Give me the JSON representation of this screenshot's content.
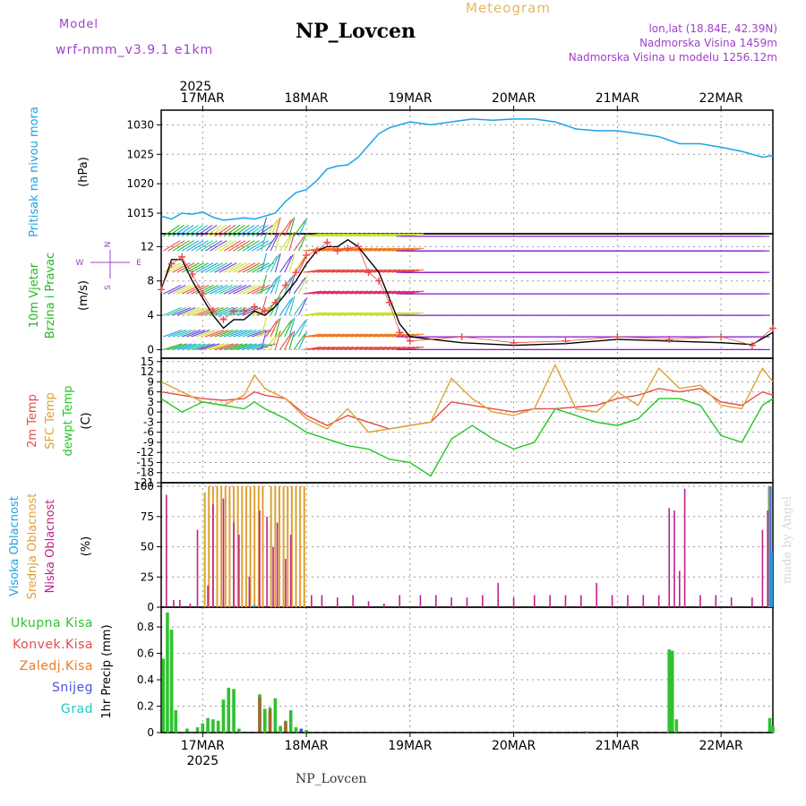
{
  "header": {
    "model_label": "Model",
    "model_name": "wrf-nmm_v3.9.1  e1km",
    "station": "NP_Lovcen",
    "meteogram": "Meteogram",
    "coords": "lon,lat (18.84E, 42.39N)",
    "elevation": "Nadmorska Visina 1459m",
    "model_elevation": "Nadmorska Visina u modelu 1256.12m"
  },
  "footer": {
    "station": "NP_Lovcen",
    "credit": "made by Angel"
  },
  "colors": {
    "pressure": "#1aa3e8",
    "wind_legend": "#22b822",
    "purple": "#a040c8",
    "temp2m": "#e84a4a",
    "sfc": "#e0a030",
    "dew": "#22c822",
    "high_cloud": "#1aa3e8",
    "mid_cloud": "#e0a030",
    "low_cloud": "#c0208a",
    "precip_total": "#2ec22e",
    "precip_conv": "#e84a4a",
    "precip_frz": "#f07a20",
    "snow": "#5050e0",
    "hail": "#20c8c8"
  },
  "time_axis": {
    "year_label": "2025",
    "days": [
      "17MAR",
      "18MAR",
      "19MAR",
      "20MAR",
      "21MAR",
      "22MAR"
    ],
    "start_day": 16.6,
    "end_day": 22.5
  },
  "chart_data": [
    {
      "type": "line",
      "id": "pressure",
      "ylabel_left": "Pritisak na nivou mora",
      "unit": "(hPa)",
      "ylim": [
        1011.5,
        1032.5
      ],
      "yticks": [
        1015,
        1020,
        1025,
        1030
      ],
      "grid": true,
      "series": [
        {
          "color": "#1aa3e8",
          "x": [
            16.6,
            16.7,
            16.8,
            16.9,
            17.0,
            17.1,
            17.2,
            17.3,
            17.4,
            17.5,
            17.6,
            17.7,
            17.8,
            17.9,
            18.0,
            18.1,
            18.2,
            18.3,
            18.4,
            18.5,
            18.6,
            18.7,
            18.8,
            18.9,
            19.0,
            19.2,
            19.4,
            19.6,
            19.8,
            20.0,
            20.2,
            20.4,
            20.6,
            20.8,
            21.0,
            21.2,
            21.4,
            21.6,
            21.8,
            22.0,
            22.2,
            22.4,
            22.5
          ],
          "y": [
            1014.5,
            1014.0,
            1015.0,
            1014.8,
            1015.2,
            1014.3,
            1013.8,
            1014.0,
            1014.2,
            1014.0,
            1014.5,
            1015.0,
            1017.0,
            1018.5,
            1019.0,
            1020.5,
            1022.5,
            1023.0,
            1023.2,
            1024.5,
            1026.5,
            1028.5,
            1029.5,
            1030.0,
            1030.5,
            1030.0,
            1030.5,
            1031.0,
            1030.8,
            1031.0,
            1031.0,
            1030.5,
            1029.3,
            1029.0,
            1029.0,
            1028.5,
            1028.0,
            1026.8,
            1026.8,
            1026.2,
            1025.5,
            1024.5,
            1024.8
          ]
        }
      ]
    },
    {
      "type": "line",
      "id": "wind",
      "ylabel_left": [
        "10m Vjetar",
        "Brzina i Pravac"
      ],
      "unit": "(m/s)",
      "compass": [
        "N",
        "W",
        "E",
        "S"
      ],
      "ylim": [
        -1,
        13.5
      ],
      "yticks": [
        0,
        4,
        8,
        12
      ],
      "grid": true,
      "barb_levels": [
        0,
        1.5,
        4,
        6.5,
        9,
        11.5,
        13.2
      ],
      "series": [
        {
          "name": "speed",
          "color": "#000000",
          "x": [
            16.6,
            16.7,
            16.8,
            16.9,
            17.0,
            17.1,
            17.2,
            17.3,
            17.4,
            17.5,
            17.6,
            17.7,
            17.8,
            17.9,
            18.0,
            18.1,
            18.2,
            18.3,
            18.4,
            18.5,
            18.6,
            18.7,
            18.8,
            18.9,
            19.0,
            19.5,
            20.0,
            20.5,
            21.0,
            21.5,
            22.0,
            22.3,
            22.5
          ],
          "y": [
            7.0,
            10.5,
            10.5,
            8.0,
            6.0,
            4.0,
            2.5,
            3.5,
            3.5,
            4.5,
            4.0,
            5.0,
            6.5,
            8.0,
            10.0,
            11.5,
            12.0,
            12.0,
            12.8,
            12.0,
            10.5,
            9.0,
            6.0,
            3.0,
            1.5,
            0.8,
            0.5,
            0.7,
            1.2,
            1.0,
            0.8,
            0.6,
            2.0
          ]
        },
        {
          "name": "gust",
          "color": "#e84a4a",
          "x": [
            16.6,
            16.7,
            16.8,
            16.9,
            17.0,
            17.1,
            17.2,
            17.3,
            17.4,
            17.5,
            17.6,
            17.7,
            17.8,
            17.9,
            18.0,
            18.1,
            18.2,
            18.3,
            18.4,
            18.5,
            18.6,
            18.7,
            18.8,
            18.9,
            19.0,
            19.5,
            20.0,
            20.5,
            21.0,
            21.5,
            22.0,
            22.3,
            22.5
          ],
          "y": [
            7.0,
            10.0,
            10.8,
            8.8,
            6.5,
            4.5,
            3.5,
            4.5,
            4.5,
            5.0,
            4.5,
            5.5,
            7.5,
            9.0,
            11.0,
            11.5,
            12.5,
            11.5,
            11.8,
            12.0,
            9.0,
            8.0,
            5.5,
            2.0,
            1.0,
            1.5,
            0.8,
            1.0,
            1.5,
            1.2,
            1.5,
            0.5,
            2.5
          ]
        }
      ]
    },
    {
      "type": "line",
      "id": "temperature",
      "ylabel_left": [
        "2m Temp",
        "SFC Temp",
        "dewpt Temp"
      ],
      "unit": "(C)",
      "ylim": [
        -21,
        16
      ],
      "yticks": [
        15,
        12,
        9,
        6,
        3,
        0,
        -3,
        -6,
        -9,
        -12,
        -15,
        -18,
        -21
      ],
      "grid": true,
      "series": [
        {
          "name": "2m",
          "color": "#e84a4a",
          "x": [
            16.6,
            16.8,
            17.0,
            17.2,
            17.4,
            17.5,
            17.6,
            17.8,
            18.0,
            18.2,
            18.4,
            18.6,
            18.8,
            19.0,
            19.2,
            19.4,
            19.6,
            19.8,
            20.0,
            20.2,
            20.4,
            20.6,
            20.8,
            21.0,
            21.2,
            21.4,
            21.6,
            21.8,
            22.0,
            22.2,
            22.4,
            22.5
          ],
          "y": [
            6,
            5,
            4,
            3.5,
            4,
            6,
            5,
            4,
            -1,
            -4,
            -1,
            -3,
            -5,
            -4,
            -3,
            3,
            2,
            1,
            0,
            1,
            1,
            1.5,
            2,
            4,
            5,
            7,
            6,
            7,
            3,
            2,
            6,
            5
          ]
        },
        {
          "name": "sfc",
          "color": "#e0a030",
          "x": [
            16.6,
            16.8,
            17.0,
            17.2,
            17.4,
            17.5,
            17.6,
            17.8,
            18.0,
            18.2,
            18.4,
            18.6,
            18.8,
            19.0,
            19.2,
            19.4,
            19.6,
            19.8,
            20.0,
            20.2,
            20.4,
            20.6,
            20.8,
            21.0,
            21.2,
            21.4,
            21.6,
            21.8,
            22.0,
            22.2,
            22.4,
            22.5
          ],
          "y": [
            9,
            6,
            3,
            2,
            5,
            11,
            7,
            4,
            -2,
            -5,
            1,
            -6,
            -5,
            -4,
            -3,
            10,
            4,
            0,
            -1,
            1,
            14,
            1,
            0,
            6,
            2,
            13,
            7,
            8,
            2,
            1,
            13,
            9
          ]
        },
        {
          "name": "dewpt",
          "color": "#22c822",
          "x": [
            16.6,
            16.8,
            17.0,
            17.2,
            17.4,
            17.5,
            17.6,
            17.8,
            18.0,
            18.2,
            18.4,
            18.6,
            18.8,
            19.0,
            19.2,
            19.4,
            19.6,
            19.8,
            20.0,
            20.2,
            20.4,
            20.6,
            20.8,
            21.0,
            21.2,
            21.4,
            21.6,
            21.8,
            22.0,
            22.2,
            22.4,
            22.5
          ],
          "y": [
            4,
            0,
            3,
            2,
            1,
            3,
            1,
            -2,
            -6,
            -8,
            -10,
            -11,
            -14,
            -15,
            -19,
            -8,
            -4,
            -8,
            -11,
            -9,
            1,
            -1,
            -3,
            -4,
            -2,
            4,
            4,
            2,
            -7,
            -9,
            2,
            4
          ]
        }
      ]
    },
    {
      "type": "bar",
      "id": "clouds",
      "ylabel_left": [
        "Visoka Oblacnost",
        "Srednja Oblacnost",
        "Niska Oblacnost"
      ],
      "unit": "(%)",
      "ylim": [
        0,
        103
      ],
      "yticks": [
        0,
        25,
        50,
        75,
        100
      ],
      "grid": true,
      "low": {
        "x": [
          16.65,
          16.72,
          16.78,
          16.88,
          16.95,
          17.05,
          17.1,
          17.2,
          17.3,
          17.35,
          17.45,
          17.55,
          17.62,
          17.68,
          17.72,
          17.8,
          17.85,
          18.05,
          18.15,
          18.3,
          18.45,
          18.6,
          18.75,
          18.9,
          19.1,
          19.25,
          19.4,
          19.55,
          19.7,
          19.85,
          20.0,
          20.2,
          20.35,
          20.5,
          20.65,
          20.8,
          20.95,
          21.1,
          21.25,
          21.4,
          21.5,
          21.55,
          21.6,
          21.65,
          21.8,
          21.95,
          22.1,
          22.3,
          22.4,
          22.45,
          22.48
        ],
        "y": [
          93,
          6,
          6,
          3,
          64,
          18,
          85,
          90,
          70,
          60,
          25,
          80,
          75,
          50,
          70,
          40,
          60,
          10,
          10,
          8,
          10,
          5,
          3,
          10,
          10,
          10,
          8,
          8,
          10,
          20,
          8,
          10,
          10,
          10,
          10,
          20,
          10,
          10,
          10,
          10,
          82,
          80,
          30,
          98,
          10,
          10,
          8,
          8,
          64,
          80,
          100
        ]
      },
      "mid": {
        "x": [
          17.02,
          17.06,
          17.1,
          17.14,
          17.18,
          17.22,
          17.26,
          17.3,
          17.34,
          17.38,
          17.42,
          17.46,
          17.5,
          17.54,
          17.58,
          17.66,
          17.7,
          17.74,
          17.78,
          17.82,
          17.86,
          17.9,
          17.94,
          17.98,
          22.46
        ],
        "y": [
          95,
          100,
          100,
          100,
          100,
          100,
          100,
          100,
          100,
          100,
          100,
          100,
          100,
          100,
          100,
          100,
          100,
          100,
          100,
          100,
          100,
          100,
          100,
          100,
          100
        ]
      },
      "high": {
        "x": [
          17.5,
          22.47,
          22.49
        ],
        "y": [
          2,
          100,
          45
        ]
      }
    },
    {
      "type": "bar",
      "id": "precip",
      "ylabel_left": [
        "Ukupna Kisa",
        "Konvek.Kisa",
        "Zaledj.Kisa",
        "Snijeg",
        "Grad"
      ],
      "unit": "1hr Precip (mm)",
      "ylim": [
        0,
        0.95
      ],
      "yticks": [
        0,
        0.2,
        0.4,
        0.6,
        0.8
      ],
      "grid": true,
      "total": {
        "x": [
          16.62,
          16.66,
          16.7,
          16.74,
          16.85,
          16.95,
          17.0,
          17.05,
          17.1,
          17.15,
          17.2,
          17.25,
          17.3,
          17.35,
          17.55,
          17.6,
          17.65,
          17.7,
          17.75,
          17.8,
          17.85,
          17.9,
          18.0,
          20.7,
          21.5,
          21.53,
          21.57,
          22.47,
          22.5
        ],
        "y": [
          0.56,
          0.91,
          0.78,
          0.17,
          0.03,
          0.04,
          0.07,
          0.11,
          0.1,
          0.09,
          0.25,
          0.34,
          0.33,
          0.03,
          0.29,
          0.18,
          0.19,
          0.26,
          0.05,
          0.09,
          0.17,
          0.04,
          0.02,
          0.01,
          0.63,
          0.62,
          0.1,
          0.11,
          0.05
        ]
      },
      "frz": {
        "x": [
          17.55,
          17.65,
          17.8
        ],
        "y": [
          0.27,
          0.17,
          0.08
        ]
      },
      "snow": {
        "x": [
          17.95
        ],
        "y": [
          0.03
        ]
      }
    }
  ]
}
